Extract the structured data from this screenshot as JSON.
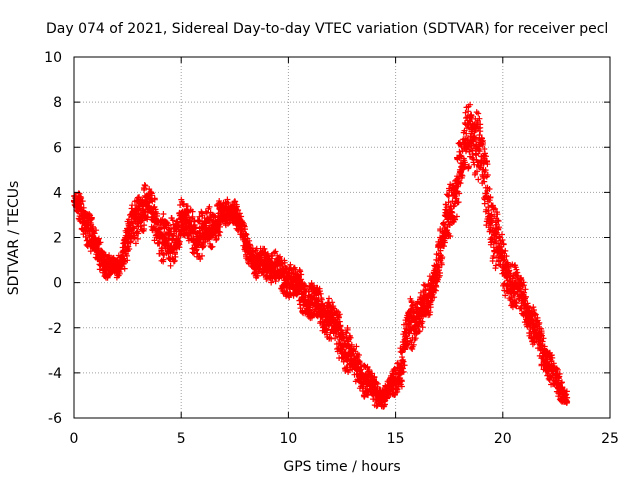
{
  "chart_data": {
    "type": "scatter",
    "title": "Day 074 of 2021, Sidereal Day-to-day VTEC variation (SDTVAR) for receiver pecl",
    "xlabel": "GPS time / hours",
    "ylabel": "SDTVAR / TECUs",
    "xlim": [
      0,
      25
    ],
    "ylim": [
      -6,
      10
    ],
    "xticks": [
      "0",
      "5",
      "10",
      "15",
      "20",
      "25"
    ],
    "yticks": [
      "-6",
      "-4",
      "-2",
      "0",
      "2",
      "4",
      "6",
      "8",
      "10"
    ],
    "grid": true,
    "marker": "+",
    "series_color": "#ff0000",
    "series": [
      {
        "name": "SDTVAR",
        "x": [
          0.0,
          0.3,
          0.6,
          1.0,
          1.5,
          2.0,
          2.5,
          3.0,
          3.5,
          4.0,
          4.5,
          5.0,
          5.5,
          6.0,
          6.5,
          7.0,
          7.5,
          8.0,
          8.5,
          9.0,
          9.5,
          10.0,
          10.5,
          11.0,
          11.5,
          12.0,
          12.5,
          13.0,
          13.5,
          14.0,
          14.5,
          15.0,
          15.3,
          15.6,
          16.0,
          16.5,
          17.0,
          17.5,
          18.0,
          18.5,
          19.0,
          19.5,
          20.0,
          20.5,
          21.0,
          21.5,
          22.0,
          22.5,
          23.0
        ],
        "y": [
          3.6,
          3.3,
          2.6,
          1.6,
          0.8,
          0.6,
          1.8,
          3.2,
          3.4,
          2.2,
          1.6,
          2.8,
          2.3,
          2.0,
          2.6,
          3.0,
          3.2,
          1.8,
          0.8,
          0.9,
          0.5,
          0.2,
          -0.3,
          -0.8,
          -1.2,
          -1.7,
          -2.5,
          -3.5,
          -4.2,
          -4.8,
          -5.1,
          -4.3,
          -3.3,
          -2.2,
          -1.3,
          -1.0,
          1.0,
          3.0,
          5.0,
          7.0,
          5.4,
          2.7,
          0.8,
          -0.2,
          -0.8,
          -2.1,
          -3.3,
          -4.4,
          -5.1
        ],
        "spread": [
          0.5,
          0.9,
          1.2,
          1.0,
          0.8,
          0.5,
          1.2,
          1.5,
          1.2,
          1.3,
          1.5,
          1.2,
          1.4,
          1.3,
          1.2,
          0.8,
          0.7,
          0.8,
          0.9,
          0.9,
          1.0,
          1.1,
          1.1,
          1.0,
          1.2,
          1.3,
          1.4,
          1.2,
          1.0,
          0.8,
          0.6,
          0.8,
          1.6,
          1.6,
          1.3,
          1.2,
          1.3,
          1.7,
          1.8,
          1.8,
          2.2,
          2.0,
          1.5,
          1.3,
          1.1,
          1.2,
          1.0,
          0.8,
          0.5
        ]
      }
    ]
  }
}
